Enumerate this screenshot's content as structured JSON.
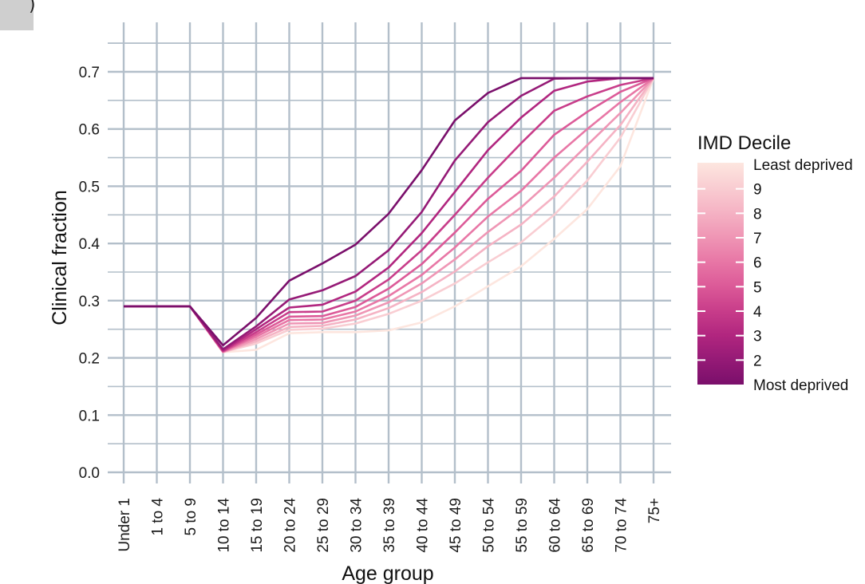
{
  "chart_data": {
    "type": "line",
    "xlabel": "Age group",
    "ylabel": "Clinical fraction",
    "ylim": [
      0,
      0.7
    ],
    "y_ticks": [
      "0.0",
      "0.1",
      "0.2",
      "0.3",
      "0.4",
      "0.5",
      "0.6",
      "0.7"
    ],
    "grid": true,
    "legend_position": "right",
    "categories": [
      "Under 1",
      "1 to 4",
      "5 to 9",
      "10 to 14",
      "15 to 19",
      "20 to 24",
      "25 to 29",
      "30 to 34",
      "35 to 39",
      "40 to 44",
      "45 to 49",
      "50 to 54",
      "55 to 59",
      "60 to 64",
      "65 to 69",
      "70 to 74",
      "75+"
    ],
    "legend": {
      "title": "IMD Decile",
      "labels": [
        "Least deprived",
        "9",
        "8",
        "7",
        "6",
        "5",
        "4",
        "3",
        "2",
        "Most deprived"
      ],
      "colors": [
        "#fde6df",
        "#f9cdd2",
        "#f5b3c4",
        "#ef96b5",
        "#e877a6",
        "#dc5a98",
        "#c83d8a",
        "#b1267f",
        "#951a76",
        "#7a0f6b"
      ]
    },
    "series": [
      {
        "name": "Most deprived",
        "color": "#7a0f6b",
        "values": [
          0.29,
          0.29,
          0.29,
          0.222,
          0.27,
          0.335,
          0.365,
          0.398,
          0.452,
          0.528,
          0.615,
          0.663,
          0.689,
          0.689,
          0.689,
          0.689,
          0.689
        ]
      },
      {
        "name": "2",
        "color": "#951a76",
        "values": [
          0.29,
          0.29,
          0.29,
          0.215,
          0.255,
          0.302,
          0.318,
          0.343,
          0.388,
          0.455,
          0.545,
          0.612,
          0.658,
          0.688,
          0.689,
          0.689,
          0.689
        ]
      },
      {
        "name": "3",
        "color": "#b1267f",
        "values": [
          0.29,
          0.29,
          0.29,
          0.213,
          0.25,
          0.288,
          0.293,
          0.316,
          0.358,
          0.418,
          0.49,
          0.563,
          0.62,
          0.667,
          0.683,
          0.689,
          0.689
        ]
      },
      {
        "name": "4",
        "color": "#c83d8a",
        "values": [
          0.29,
          0.29,
          0.29,
          0.212,
          0.245,
          0.28,
          0.281,
          0.3,
          0.337,
          0.388,
          0.45,
          0.515,
          0.575,
          0.632,
          0.657,
          0.677,
          0.689
        ]
      },
      {
        "name": "5",
        "color": "#dc5a98",
        "values": [
          0.29,
          0.29,
          0.29,
          0.211,
          0.241,
          0.272,
          0.273,
          0.289,
          0.321,
          0.364,
          0.419,
          0.478,
          0.527,
          0.59,
          0.63,
          0.665,
          0.689
        ]
      },
      {
        "name": "6",
        "color": "#e877a6",
        "values": [
          0.29,
          0.29,
          0.29,
          0.211,
          0.237,
          0.266,
          0.267,
          0.281,
          0.308,
          0.345,
          0.393,
          0.447,
          0.492,
          0.55,
          0.6,
          0.647,
          0.689
        ]
      },
      {
        "name": "7",
        "color": "#ef96b5",
        "values": [
          0.29,
          0.29,
          0.29,
          0.21,
          0.233,
          0.26,
          0.261,
          0.274,
          0.297,
          0.33,
          0.372,
          0.42,
          0.463,
          0.515,
          0.572,
          0.628,
          0.689
        ]
      },
      {
        "name": "8",
        "color": "#f5b3c4",
        "values": [
          0.29,
          0.29,
          0.29,
          0.21,
          0.229,
          0.254,
          0.256,
          0.267,
          0.287,
          0.315,
          0.351,
          0.395,
          0.433,
          0.482,
          0.543,
          0.607,
          0.689
        ]
      },
      {
        "name": "9",
        "color": "#f9cdd2",
        "values": [
          0.29,
          0.29,
          0.29,
          0.21,
          0.225,
          0.249,
          0.251,
          0.26,
          0.277,
          0.3,
          0.33,
          0.367,
          0.402,
          0.45,
          0.51,
          0.585,
          0.689
        ]
      },
      {
        "name": "Least deprived",
        "color": "#fde6df",
        "values": [
          0.29,
          0.29,
          0.29,
          0.21,
          0.214,
          0.243,
          0.245,
          0.245,
          0.248,
          0.262,
          0.29,
          0.325,
          0.36,
          0.408,
          0.46,
          0.535,
          0.689
        ]
      }
    ]
  }
}
